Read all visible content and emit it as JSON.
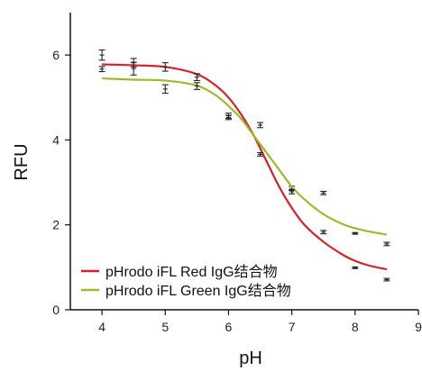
{
  "chart_data": {
    "type": "line",
    "xlabel": "pH",
    "ylabel": "RFU",
    "xlim": [
      3.5,
      9
    ],
    "ylim": [
      0,
      7
    ],
    "x_ticks": [
      "4",
      "5",
      "6",
      "7",
      "8",
      "9"
    ],
    "y_ticks": [
      "0",
      "2",
      "4",
      "6"
    ],
    "grid": false,
    "legend_position": "bottom-left",
    "series": [
      {
        "name": "pHrodo iFL Red IgG结合物",
        "color": "#d2232a",
        "fit": [
          [
            4.0,
            5.78
          ],
          [
            4.5,
            5.76
          ],
          [
            5.0,
            5.72
          ],
          [
            5.5,
            5.55
          ],
          [
            5.8,
            5.28
          ],
          [
            6.0,
            5.0
          ],
          [
            6.2,
            4.6
          ],
          [
            6.4,
            4.1
          ],
          [
            6.6,
            3.5
          ],
          [
            6.8,
            2.9
          ],
          [
            7.0,
            2.4
          ],
          [
            7.2,
            2.0
          ],
          [
            7.5,
            1.6
          ],
          [
            7.8,
            1.3
          ],
          [
            8.0,
            1.15
          ],
          [
            8.2,
            1.05
          ],
          [
            8.5,
            0.95
          ]
        ],
        "points": [
          {
            "x": 4.0,
            "y": 6.0,
            "err": 0.12
          },
          {
            "x": 4.5,
            "y": 5.82,
            "err": 0.1
          },
          {
            "x": 5.0,
            "y": 5.72,
            "err": 0.1
          },
          {
            "x": 5.5,
            "y": 5.48,
            "err": 0.08
          },
          {
            "x": 6.0,
            "y": 4.57,
            "err": 0.06
          },
          {
            "x": 6.5,
            "y": 4.35,
            "err": 0.06
          },
          {
            "x": 7.0,
            "y": 2.86,
            "err": 0.05
          },
          {
            "x": 7.5,
            "y": 1.83,
            "err": 0.04
          },
          {
            "x": 8.0,
            "y": 0.99,
            "err": 0.02
          },
          {
            "x": 8.5,
            "y": 0.71,
            "err": 0.03
          }
        ]
      },
      {
        "name": "pHrodo iFL Green IgG结合物",
        "color": "#9bbb2e",
        "fit": [
          [
            4.0,
            5.45
          ],
          [
            4.5,
            5.42
          ],
          [
            5.0,
            5.4
          ],
          [
            5.5,
            5.28
          ],
          [
            5.8,
            5.05
          ],
          [
            6.0,
            4.8
          ],
          [
            6.2,
            4.5
          ],
          [
            6.4,
            4.1
          ],
          [
            6.6,
            3.7
          ],
          [
            6.8,
            3.3
          ],
          [
            7.0,
            2.9
          ],
          [
            7.2,
            2.6
          ],
          [
            7.5,
            2.25
          ],
          [
            7.8,
            2.02
          ],
          [
            8.0,
            1.92
          ],
          [
            8.2,
            1.85
          ],
          [
            8.5,
            1.77
          ]
        ],
        "points": [
          {
            "x": 4.0,
            "y": 5.67,
            "err": 0.06
          },
          {
            "x": 4.5,
            "y": 5.68,
            "err": 0.15
          },
          {
            "x": 5.0,
            "y": 5.2,
            "err": 0.1
          },
          {
            "x": 5.5,
            "y": 5.27,
            "err": 0.08
          },
          {
            "x": 6.0,
            "y": 4.53,
            "err": 0.05
          },
          {
            "x": 6.5,
            "y": 3.66,
            "err": 0.04
          },
          {
            "x": 7.0,
            "y": 2.78,
            "err": 0.05
          },
          {
            "x": 7.5,
            "y": 2.75,
            "err": 0.04
          },
          {
            "x": 8.0,
            "y": 1.8,
            "err": 0.02
          },
          {
            "x": 8.5,
            "y": 1.55,
            "err": 0.04
          }
        ]
      }
    ]
  }
}
